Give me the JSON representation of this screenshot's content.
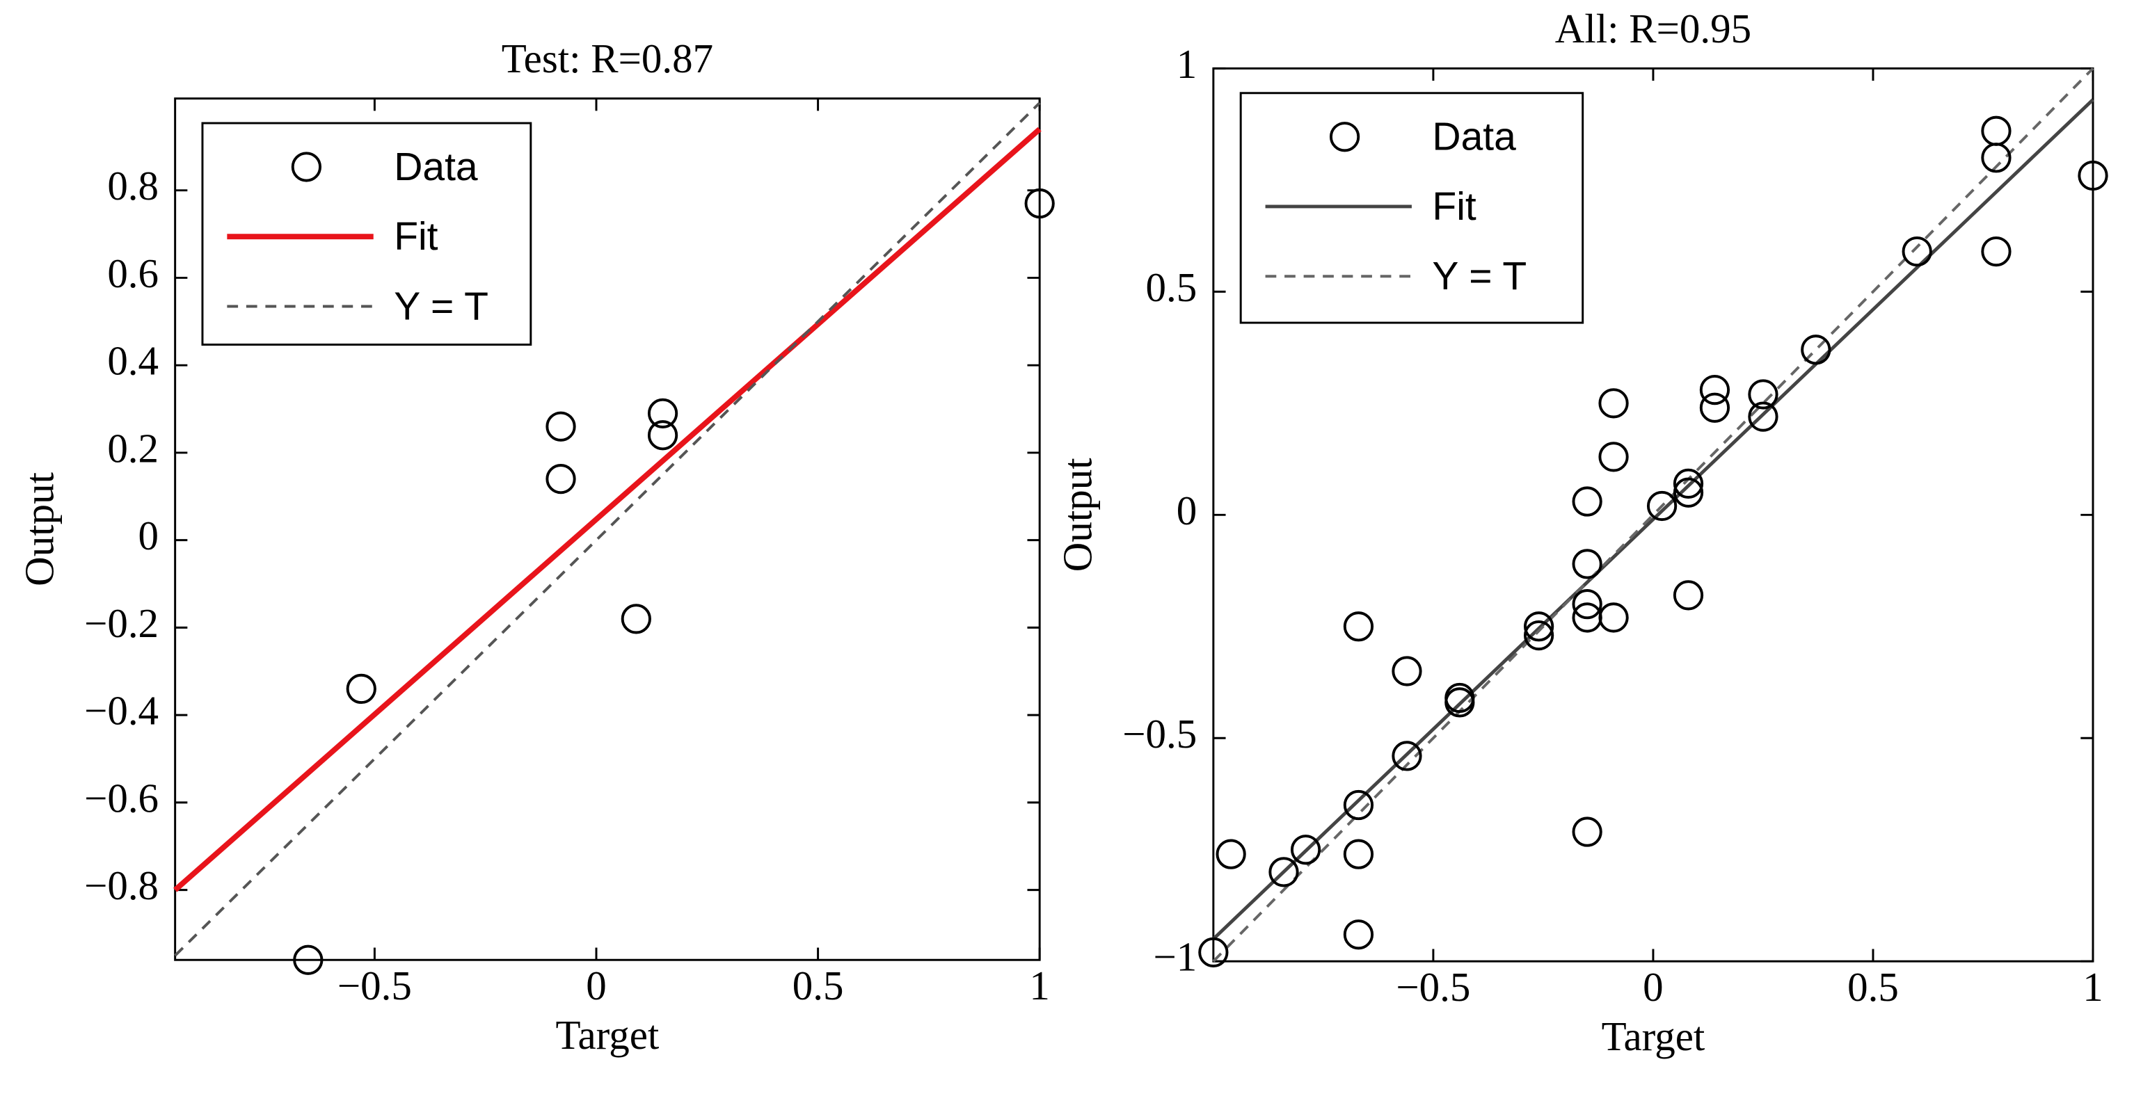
{
  "chart_data": [
    {
      "type": "scatter",
      "title": "Test: R=0.87",
      "xlabel": "Target",
      "ylabel": "Output",
      "xlim": [
        -0.95,
        1
      ],
      "ylim": [
        -0.96,
        1.01
      ],
      "xticks": [
        {
          "value": -0.5,
          "label": "−0.5"
        },
        0,
        0.5,
        1
      ],
      "yticks": [
        {
          "value": -0.8,
          "label": "−0.8"
        },
        {
          "value": -0.6,
          "label": "−0.6"
        },
        {
          "value": -0.4,
          "label": "−0.4"
        },
        {
          "value": -0.2,
          "label": "−0.2"
        },
        0,
        0.2,
        0.4,
        0.6,
        0.8
      ],
      "legend": "upper left",
      "series": [
        {
          "name": "Data",
          "type": "scatter",
          "color": "#000000",
          "x": [
            1.0,
            -0.08,
            -0.08,
            0.15,
            0.15,
            0.09,
            -0.53,
            -0.65
          ],
          "values": [
            0.77,
            0.26,
            0.14,
            0.29,
            0.24,
            -0.18,
            -0.34,
            -0.96
          ]
        },
        {
          "name": "Fit",
          "type": "line",
          "color": "#e8141b",
          "x": [
            -0.95,
            1.0
          ],
          "values": [
            -0.8,
            0.94
          ]
        },
        {
          "name": "Y = T",
          "type": "line",
          "color": "#555555",
          "dashed": true,
          "x": [
            -0.95,
            1.0
          ],
          "values": [
            -0.95,
            1.0
          ]
        }
      ]
    },
    {
      "type": "scatter",
      "title": "All: R=0.95",
      "xlabel": "Target",
      "ylabel": "Output",
      "xlim": [
        -1,
        1
      ],
      "ylim": [
        -1,
        1
      ],
      "xticks": [
        {
          "value": -0.5,
          "label": "−0.5"
        },
        0,
        0.5,
        1
      ],
      "yticks": [
        {
          "value": -1,
          "label": "−1"
        },
        {
          "value": -0.5,
          "label": "−0.5"
        },
        0,
        0.5,
        1
      ],
      "legend": "upper left",
      "series": [
        {
          "name": "Data",
          "type": "scatter",
          "color": "#000000",
          "x": [
            0.78,
            0.78,
            0.78,
            1.0,
            0.6,
            0.37,
            0.14,
            0.14,
            0.25,
            0.25,
            -0.09,
            -0.09,
            0.02,
            0.08,
            0.08,
            -0.15,
            -0.15,
            -0.15,
            -0.15,
            -0.09,
            0.08,
            -0.26,
            -0.26,
            -0.44,
            -0.44,
            -0.67,
            -0.56,
            -0.56,
            -0.15,
            -0.67,
            -0.67,
            -0.67,
            -0.79,
            -0.84,
            -0.96,
            -1.0
          ],
          "values": [
            0.86,
            0.8,
            0.59,
            0.76,
            0.59,
            0.37,
            0.28,
            0.24,
            0.27,
            0.22,
            0.25,
            0.13,
            0.02,
            0.07,
            0.05,
            0.03,
            -0.11,
            -0.2,
            -0.23,
            -0.23,
            -0.18,
            -0.25,
            -0.27,
            -0.41,
            -0.42,
            -0.25,
            -0.35,
            -0.54,
            -0.71,
            -0.65,
            -0.76,
            -0.94,
            -0.75,
            -0.8,
            -0.76,
            -0.98
          ]
        },
        {
          "name": "Fit",
          "type": "line",
          "color": "#444444",
          "x": [
            -1.0,
            1.0
          ],
          "values": [
            -0.95,
            0.93
          ]
        },
        {
          "name": "Y = T",
          "type": "line",
          "color": "#666666",
          "dashed": true,
          "x": [
            -1.0,
            1.0
          ],
          "values": [
            -1.0,
            1.0
          ]
        }
      ]
    }
  ]
}
